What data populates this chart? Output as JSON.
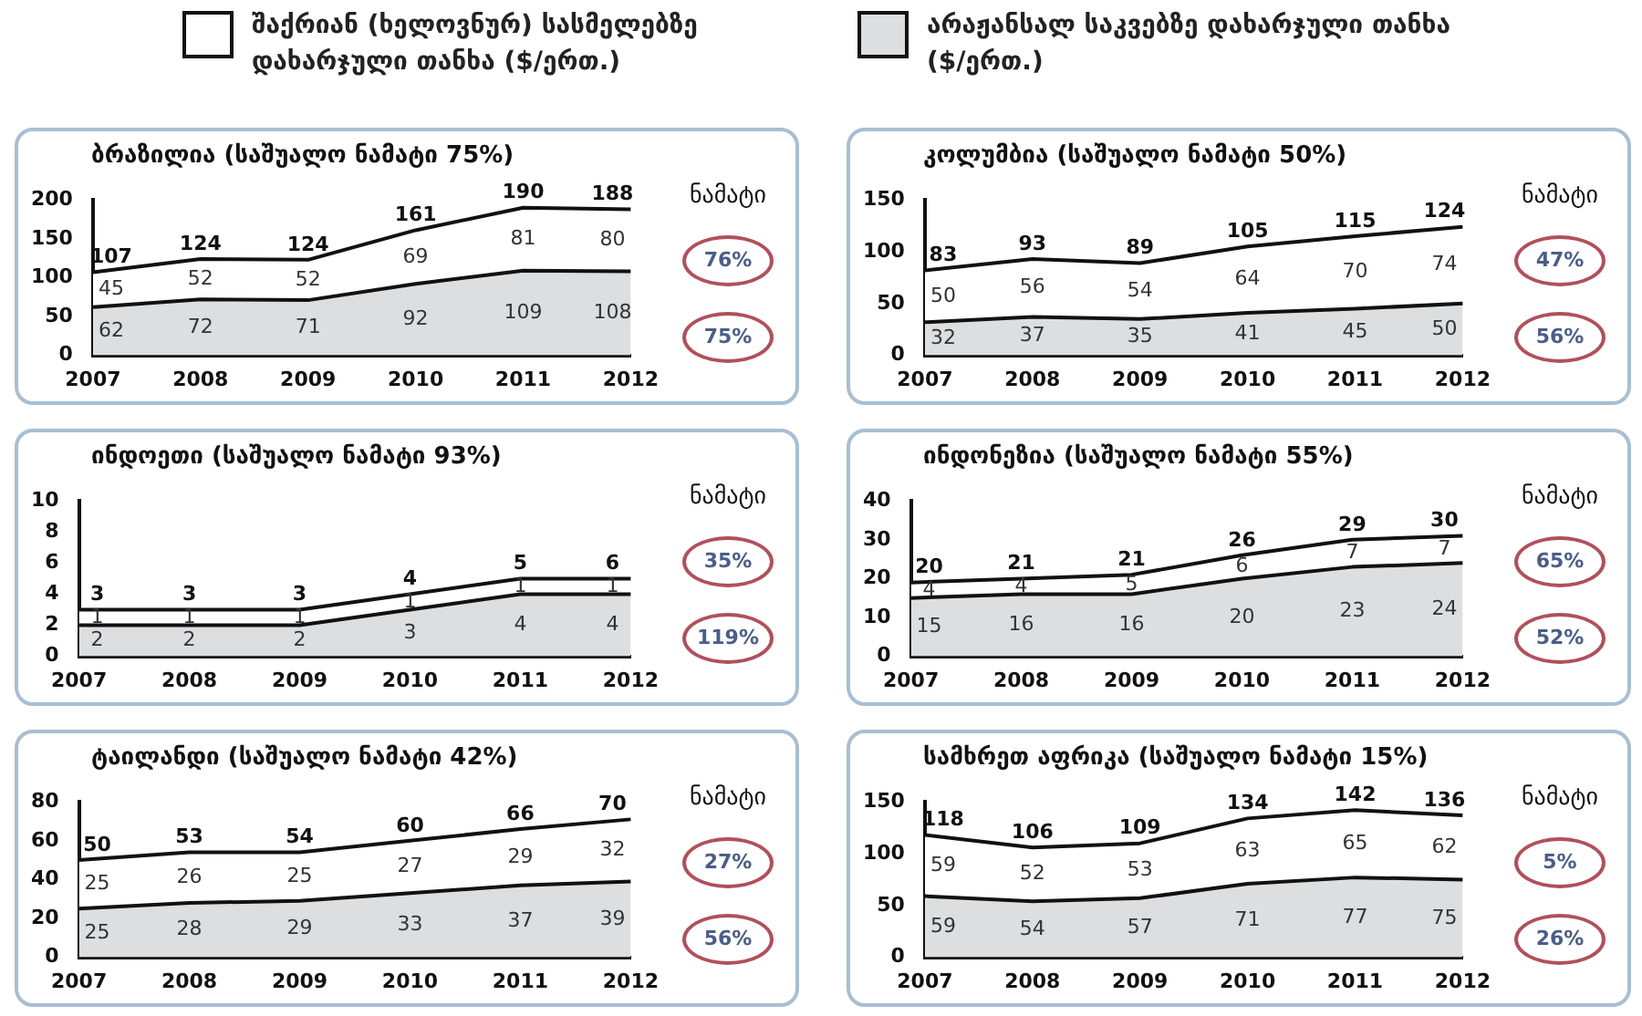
{
  "chart_data": [
    {
      "type": "area",
      "title": "ბრაზილია (საშუალო ნამატი 75%)",
      "categories": [
        "2007",
        "2008",
        "2009",
        "2010",
        "2011",
        "2012"
      ],
      "stacked": true,
      "legend": "top",
      "data_labels": true,
      "ylim": [
        0,
        200
      ],
      "yticks": [
        0,
        50,
        100,
        150,
        200
      ],
      "series": [
        {
          "name": "არაჟანსალ საკვებზე დახარჯული თანხა ($/ერთ.)",
          "color": "#dcdedf",
          "values": [
            62,
            72,
            71,
            92,
            109,
            108
          ]
        },
        {
          "name": "შაქრიან (ხელოვნურ) სასმელებზე დახარჯული თანხა ($/ერთ.)",
          "color": "#ffffff",
          "values": [
            45,
            52,
            52,
            69,
            81,
            80
          ]
        }
      ],
      "totals": [
        "107",
        "124",
        "124",
        "161",
        "190",
        "188"
      ],
      "annotations": [
        "ნამატი",
        "76%",
        "75%"
      ]
    },
    {
      "type": "area",
      "title": "კოლუმბია (საშუალო ნამატი 50%)",
      "categories": [
        "2007",
        "2008",
        "2009",
        "2010",
        "2011",
        "2012"
      ],
      "stacked": true,
      "data_labels": true,
      "ylim": [
        0,
        150
      ],
      "yticks": [
        0,
        50,
        100,
        150
      ],
      "series": [
        {
          "color": "#dcdedf",
          "values": [
            32,
            37,
            35,
            41,
            45,
            50
          ]
        },
        {
          "color": "#ffffff",
          "values": [
            50,
            56,
            54,
            64,
            70,
            74
          ]
        }
      ],
      "totals": [
        "83",
        "93",
        "89",
        "105",
        "115",
        "124"
      ],
      "annotations": [
        "ნამატი",
        "47%",
        "56%"
      ]
    },
    {
      "type": "area",
      "title": "ინდოეთი (საშუალო ნამატი 93%)",
      "categories": [
        "2007",
        "2008",
        "2009",
        "2010",
        "2011",
        "2012"
      ],
      "stacked": true,
      "data_labels": true,
      "ylim": [
        0,
        10
      ],
      "yticks": [
        0,
        2,
        4,
        6,
        8,
        10
      ],
      "series": [
        {
          "color": "#dcdedf",
          "values": [
            2,
            2,
            2,
            3,
            4,
            4
          ]
        },
        {
          "color": "#ffffff",
          "values": [
            1,
            1,
            1,
            1,
            1,
            1
          ]
        }
      ],
      "totals": [
        "3",
        "3",
        "3",
        "4",
        "5",
        "6"
      ],
      "annotations": [
        "ნამატი",
        "35%",
        "119%"
      ]
    },
    {
      "type": "area",
      "title": "ინდონეზია (საშუალო ნამატი 55%)",
      "categories": [
        "2007",
        "2008",
        "2009",
        "2010",
        "2011",
        "2012"
      ],
      "stacked": true,
      "data_labels": true,
      "ylim": [
        0,
        40
      ],
      "yticks": [
        0,
        10,
        20,
        30,
        40
      ],
      "series": [
        {
          "color": "#dcdedf",
          "values": [
            15,
            16,
            16,
            20,
            23,
            24
          ]
        },
        {
          "color": "#ffffff",
          "values": [
            4,
            4,
            5,
            6,
            7,
            7
          ]
        }
      ],
      "totals": [
        "20",
        "21",
        "21",
        "26",
        "29",
        "30"
      ],
      "annotations": [
        "ნამატი",
        "65%",
        "52%"
      ]
    },
    {
      "type": "area",
      "title": "ტაილანდი (საშუალო ნამატი 42%)",
      "categories": [
        "2007",
        "2008",
        "2009",
        "2010",
        "2011",
        "2012"
      ],
      "stacked": true,
      "data_labels": true,
      "ylim": [
        0,
        80
      ],
      "yticks": [
        0,
        20,
        40,
        60,
        80
      ],
      "series": [
        {
          "color": "#dcdedf",
          "values": [
            25,
            28,
            29,
            33,
            37,
            39
          ]
        },
        {
          "color": "#ffffff",
          "values": [
            25,
            26,
            25,
            27,
            29,
            32
          ]
        }
      ],
      "totals": [
        "50",
        "53",
        "54",
        "60",
        "66",
        "70"
      ],
      "annotations": [
        "ნამატი",
        "27%",
        "56%"
      ]
    },
    {
      "type": "area",
      "title": "სამხრეთ აფრიკა (საშუალო ნამატი 15%)",
      "categories": [
        "2007",
        "2008",
        "2009",
        "2010",
        "2011",
        "2012"
      ],
      "stacked": true,
      "data_labels": true,
      "ylim": [
        0,
        150
      ],
      "yticks": [
        0,
        50,
        100,
        150
      ],
      "series": [
        {
          "color": "#dcdedf",
          "values": [
            59,
            54,
            57,
            71,
            77,
            75
          ]
        },
        {
          "color": "#ffffff",
          "values": [
            59,
            52,
            53,
            63,
            65,
            62
          ]
        }
      ],
      "totals": [
        "118",
        "106",
        "109",
        "134",
        "142",
        "136"
      ],
      "annotations": [
        "ნამატი",
        "5%",
        "26%"
      ]
    }
  ]
}
